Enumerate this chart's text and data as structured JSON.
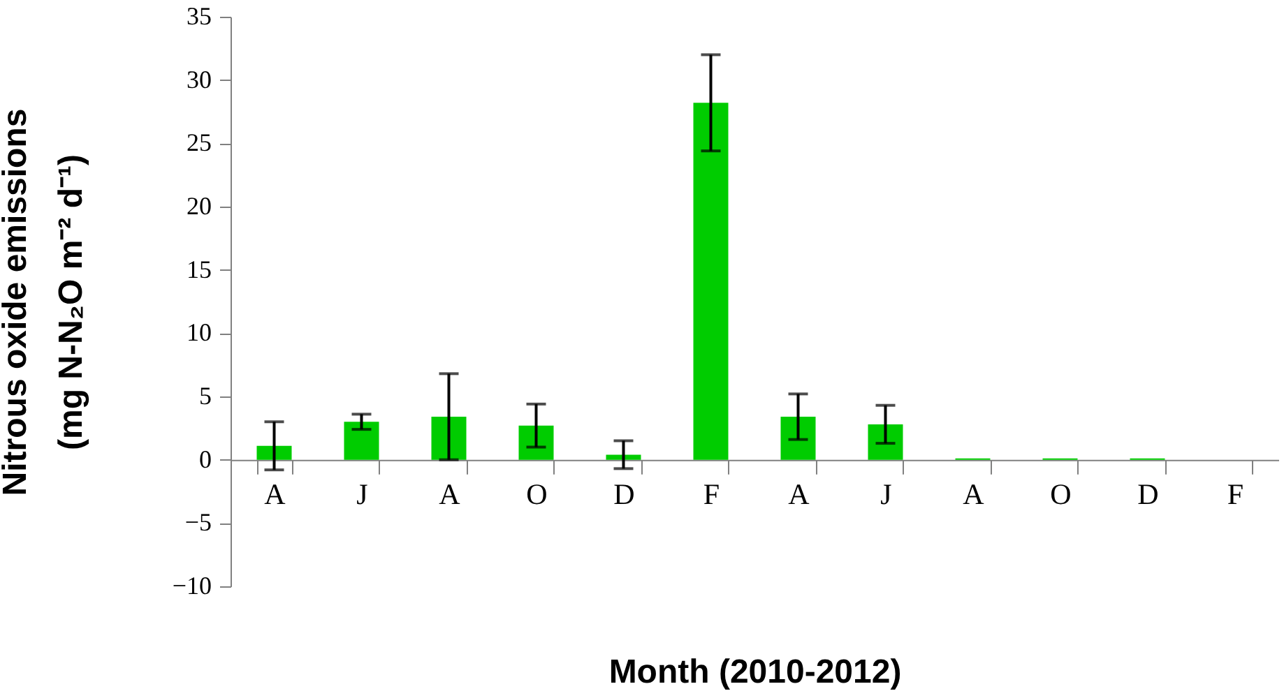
{
  "chart_data": {
    "type": "bar",
    "xlabel": "Month (2010-2012)",
    "ylabel": "Nitrous oxide emissions (mg N-N₂O m⁻² d⁻¹)",
    "categories": [
      "A",
      "J",
      "A",
      "O",
      "D",
      "F",
      "A",
      "J",
      "A",
      "O",
      "D",
      "F"
    ],
    "values": [
      1.1,
      3.0,
      3.4,
      2.7,
      0.4,
      28.2,
      3.4,
      2.8,
      0.1,
      0.1,
      0.1,
      0
    ],
    "errors": [
      1.9,
      0.6,
      3.4,
      1.7,
      1.1,
      3.8,
      1.8,
      1.5,
      null,
      null,
      null,
      null
    ],
    "color": "#00cc00",
    "ylim": [
      -10,
      35
    ],
    "yticks": [
      -10,
      -5,
      0,
      5,
      10,
      15,
      20,
      25,
      30,
      35
    ],
    "grid": false
  }
}
